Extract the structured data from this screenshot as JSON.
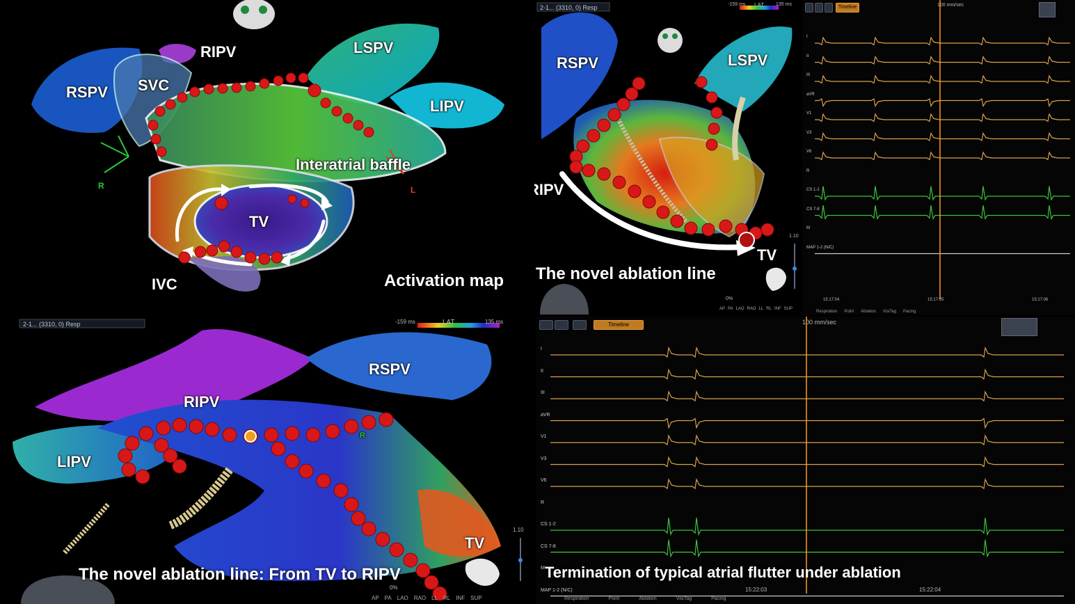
{
  "panel_top_left": {
    "labels": {
      "ripv": "RIPV",
      "lspv": "LSPV",
      "rspv": "RSPV",
      "svc": "SVC",
      "lipv": "LIPV",
      "interatrial_baffle": "Interatrial baffle",
      "tv": "TV",
      "ivc": "IVC",
      "axis_r": "R",
      "axis_l": "L"
    },
    "caption": "Activation map"
  },
  "panel_top_right_map": {
    "header": "2-1... (3310, 0) Resp",
    "lat_scale": {
      "min": "-159 ms",
      "title": "LAT",
      "max": "135 ms"
    },
    "labels": {
      "rspv": "RSPV",
      "lspv": "LSPV",
      "ripv": "RIPV",
      "tv": "TV"
    },
    "caption": "The novel ablation line",
    "zoom": "1.10",
    "percent": "0%",
    "view_buttons": [
      "AP",
      "PA",
      "LAO",
      "RAO",
      "LL",
      "RL",
      "INF",
      "SUP"
    ]
  },
  "panel_top_right_ecg": {
    "sweep": "100 mm/sec",
    "channels": [
      "I",
      "II",
      "III",
      "aVR",
      "V1",
      "V3",
      "V6",
      "R",
      "CS 1-2",
      "CS 7-8",
      "M",
      "MAP 1-2 (N/C)"
    ],
    "times": [
      "15:17:04",
      "15:17:05",
      "15:17:06"
    ],
    "footer_tags": [
      "Respiration",
      "Point",
      "Ablation",
      "VisiTag",
      "Pacing"
    ],
    "toolbar_label": "Timeline"
  },
  "panel_bottom_left": {
    "header": "2-1... (3310, 0) Resp",
    "lat_scale": {
      "min": "-159 ms",
      "title": "LAT",
      "max": "135 ms"
    },
    "labels": {
      "rspv": "RSPV",
      "ripv": "RIPV",
      "lipv": "LIPV",
      "tv": "TV",
      "axis_r": "R"
    },
    "caption": "The novel ablation line: From TV to RIPV",
    "zoom": "1.10",
    "percent": "0%",
    "view_buttons": [
      "AP",
      "PA",
      "LAO",
      "RAO",
      "LL",
      "RL",
      "INF",
      "SUP"
    ]
  },
  "panel_bottom_right_ecg": {
    "sweep": "100 mm/sec",
    "toolbar_label": "Timeline",
    "channels": [
      "I",
      "II",
      "III",
      "aVR",
      "V1",
      "V3",
      "V6",
      "R",
      "CS 1-2",
      "CS 7-8",
      "M",
      "MAP 1-2 (N/C)"
    ],
    "times": [
      "15:22:03",
      "15:22:04"
    ],
    "footer_tags": [
      "Respiration",
      "Point",
      "Ablation",
      "VisiTag",
      "Pacing"
    ],
    "caption": "Termination of typical atrial flutter under ablation"
  },
  "colors": {
    "ecg_surface": "#d8a24a",
    "ecg_intracardiac": "#3cc43c",
    "cursor": "#ff9a2a",
    "ablation_point": "#e01818",
    "activation_arrow": "#ffffff"
  }
}
